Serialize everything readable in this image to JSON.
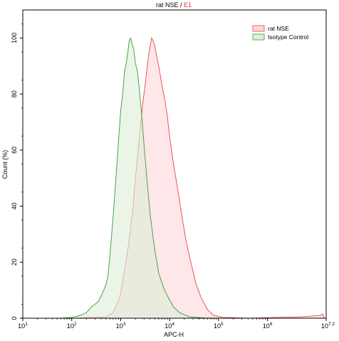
{
  "chart_data": {
    "type": "area",
    "title": {
      "main": "rat NSE",
      "separator": " / ",
      "gate": "E1",
      "main_color": "#000000",
      "gate_color": "#e53030"
    },
    "xlabel": "APC-H",
    "ylabel": "Count  (%)",
    "x_scale": "log",
    "xlim": [
      10,
      15848932
    ],
    "ylim": [
      0,
      110
    ],
    "x_ticks": [
      {
        "value": 10,
        "base": "10",
        "exp": "1"
      },
      {
        "value": 100,
        "base": "10",
        "exp": "2"
      },
      {
        "value": 1000,
        "base": "10",
        "exp": "3"
      },
      {
        "value": 10000,
        "base": "10",
        "exp": "4"
      },
      {
        "value": 100000,
        "base": "10",
        "exp": "5"
      },
      {
        "value": 1000000,
        "base": "10",
        "exp": "6"
      },
      {
        "value": 15848932,
        "base": "10",
        "exp": "7.2"
      }
    ],
    "y_ticks": [
      0,
      20,
      40,
      60,
      80,
      100
    ],
    "grid": false,
    "legend_position": "top-right",
    "series": [
      {
        "name": "rat NSE",
        "stroke": "#e8454a",
        "fill": "#ffd6da",
        "x": [
          120,
          500,
          700,
          900,
          1000,
          1200,
          1500,
          1800,
          2000,
          2400,
          2800,
          3200,
          3500,
          3800,
          4000,
          4300,
          4600,
          5000,
          5500,
          6000,
          7000,
          8000,
          9000,
          10000,
          12000,
          15000,
          18000,
          22000,
          28000,
          35000,
          45000,
          60000,
          80000,
          120000,
          200000,
          400000,
          1000000,
          5000000,
          12000000,
          13500000,
          14500000
        ],
        "y": [
          0,
          0.5,
          2,
          6,
          9,
          17,
          28,
          40,
          50,
          64,
          76,
          84,
          90,
          95,
          97,
          100,
          99,
          97,
          93,
          90,
          83,
          78,
          72,
          65,
          55,
          45,
          36,
          27,
          19,
          12,
          7,
          3,
          1,
          0.3,
          0.2,
          0,
          0.2,
          0.5,
          1,
          1.5,
          0
        ]
      },
      {
        "name": "Isotype Control",
        "stroke": "#3a9a3a",
        "fill": "#dcefd8",
        "x": [
          60,
          100,
          150,
          200,
          250,
          300,
          350,
          400,
          450,
          500,
          550,
          600,
          700,
          800,
          900,
          1000,
          1100,
          1200,
          1300,
          1400,
          1500,
          1600,
          1700,
          1850,
          2000,
          2200,
          2400,
          2700,
          3000,
          3500,
          4000,
          5000,
          6000,
          7500,
          9000,
          12000,
          16000,
          25000,
          50000,
          100000
        ],
        "y": [
          0,
          0.3,
          1,
          2,
          4,
          5,
          6,
          8,
          10,
          12,
          15,
          22,
          36,
          50,
          63,
          74,
          80,
          88,
          91,
          95,
          99,
          100,
          98,
          96,
          91,
          88,
          82,
          72,
          62,
          48,
          37,
          24,
          16,
          11,
          8,
          4,
          2,
          0.5,
          0.1,
          0
        ]
      }
    ]
  }
}
